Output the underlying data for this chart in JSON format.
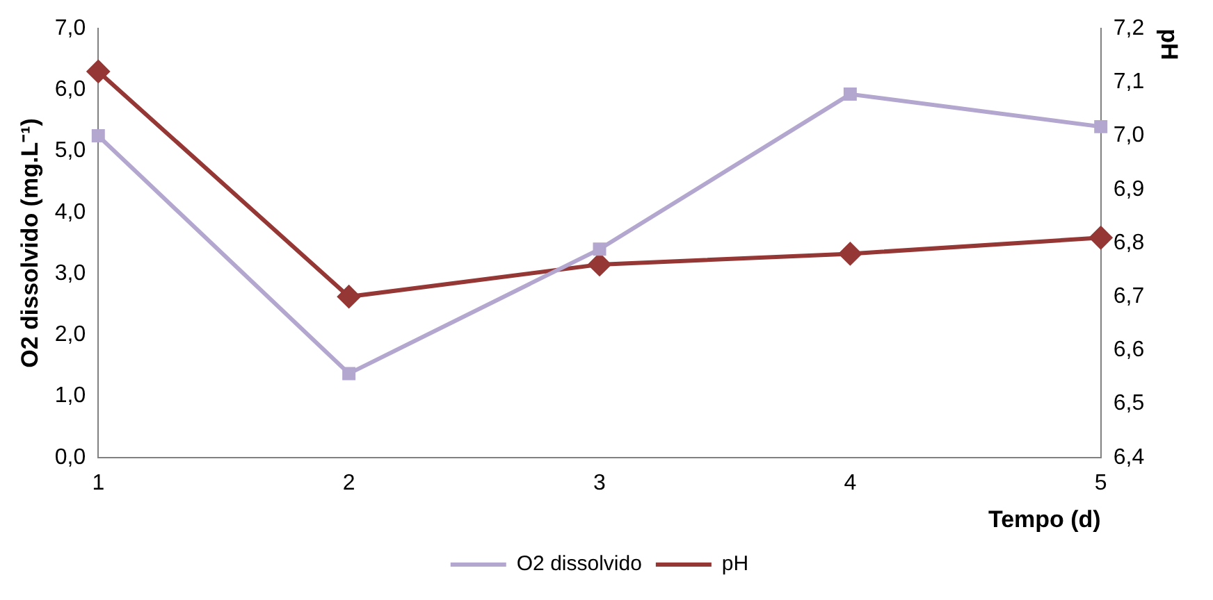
{
  "chart_data": {
    "type": "line",
    "categories": [
      "1",
      "2",
      "3",
      "4",
      "5"
    ],
    "xlabel": "Tempo (d)",
    "ylabel": "O2 dissolvido (mg.L⁻¹)",
    "y2label": "pH",
    "series": [
      {
        "name": "O2 dissolvido",
        "color": "#b3a6cf",
        "marker": "square",
        "values": [
          5.25,
          1.37,
          3.4,
          5.93,
          5.4
        ]
      },
      {
        "name": "pH",
        "color": "#953735",
        "marker": "diamond",
        "axis": "y2",
        "values": [
          7.12,
          6.7,
          6.76,
          6.78,
          6.81
        ]
      }
    ],
    "ylim": [
      0,
      7
    ],
    "yticks": [
      {
        "value": 0,
        "label": "0,0"
      },
      {
        "value": 1,
        "label": "1,0"
      },
      {
        "value": 2,
        "label": "2,0"
      },
      {
        "value": 3,
        "label": "3,0"
      },
      {
        "value": 4,
        "label": "4,0"
      },
      {
        "value": 5,
        "label": "5,0"
      },
      {
        "value": 6,
        "label": "6,0"
      },
      {
        "value": 7,
        "label": "7,0"
      }
    ],
    "y2lim": [
      6.4,
      7.2
    ],
    "y2ticks": [
      {
        "value": 6.4,
        "label": "6,4"
      },
      {
        "value": 6.5,
        "label": "6,5"
      },
      {
        "value": 6.6,
        "label": "6,6"
      },
      {
        "value": 6.7,
        "label": "6,7"
      },
      {
        "value": 6.8,
        "label": "6,8"
      },
      {
        "value": 6.9,
        "label": "6,9"
      },
      {
        "value": 7.0,
        "label": "7,0"
      },
      {
        "value": 7.1,
        "label": "7,1"
      },
      {
        "value": 7.2,
        "label": "7,2"
      }
    ],
    "grid": false,
    "legend": "bottom",
    "line_style": "solid"
  }
}
